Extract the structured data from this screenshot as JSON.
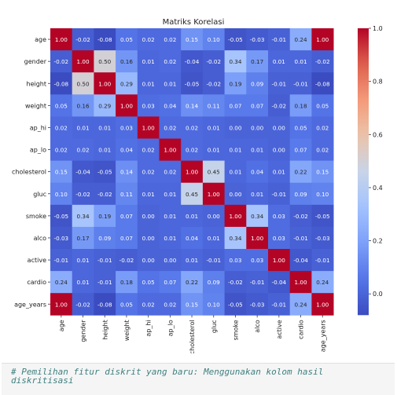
{
  "chart_data": {
    "type": "heatmap",
    "title": "Matriks Korelasi",
    "labels": [
      "age",
      "gender",
      "height",
      "weight",
      "ap_hi",
      "ap_lo",
      "cholesterol",
      "gluc",
      "smoke",
      "alco",
      "active",
      "cardio",
      "age_years"
    ],
    "values": [
      [
        1.0,
        -0.02,
        -0.08,
        0.05,
        0.02,
        0.02,
        0.15,
        0.1,
        -0.05,
        -0.03,
        -0.01,
        0.24,
        1.0
      ],
      [
        -0.02,
        1.0,
        0.5,
        0.16,
        0.01,
        0.02,
        -0.04,
        -0.02,
        0.34,
        0.17,
        0.01,
        0.01,
        -0.02
      ],
      [
        -0.08,
        0.5,
        1.0,
        0.29,
        0.01,
        0.01,
        -0.05,
        -0.02,
        0.19,
        0.09,
        -0.01,
        -0.01,
        -0.08
      ],
      [
        0.05,
        0.16,
        0.29,
        1.0,
        0.03,
        0.04,
        0.14,
        0.11,
        0.07,
        0.07,
        -0.02,
        0.18,
        0.05
      ],
      [
        0.02,
        0.01,
        0.01,
        0.03,
        1.0,
        0.02,
        0.02,
        0.01,
        -0.0,
        0.0,
        -0.0,
        0.05,
        0.02
      ],
      [
        0.02,
        0.02,
        0.01,
        0.04,
        0.02,
        1.0,
        0.02,
        0.01,
        0.01,
        0.01,
        0.0,
        0.07,
        0.02
      ],
      [
        0.15,
        -0.04,
        -0.05,
        0.14,
        0.02,
        0.02,
        1.0,
        0.45,
        0.01,
        0.04,
        0.01,
        0.22,
        0.15
      ],
      [
        0.1,
        -0.02,
        -0.02,
        0.11,
        0.01,
        0.01,
        0.45,
        1.0,
        -0.0,
        0.01,
        -0.01,
        0.09,
        0.1
      ],
      [
        -0.05,
        0.34,
        0.19,
        0.07,
        -0.0,
        0.01,
        0.01,
        -0.0,
        1.0,
        0.34,
        0.03,
        -0.02,
        -0.05
      ],
      [
        -0.03,
        0.17,
        0.09,
        0.07,
        0.0,
        0.01,
        0.04,
        0.01,
        0.34,
        1.0,
        0.03,
        -0.01,
        -0.03
      ],
      [
        -0.01,
        0.01,
        -0.01,
        -0.02,
        -0.0,
        0.0,
        0.01,
        -0.01,
        0.03,
        0.03,
        1.0,
        -0.04,
        -0.01
      ],
      [
        0.24,
        0.01,
        -0.01,
        0.18,
        0.05,
        0.07,
        0.22,
        0.09,
        -0.02,
        -0.01,
        -0.04,
        1.0,
        0.24
      ],
      [
        1.0,
        -0.02,
        -0.08,
        0.05,
        0.02,
        0.02,
        0.15,
        0.1,
        -0.05,
        -0.03,
        -0.01,
        0.24,
        1.0
      ]
    ],
    "colormap": "coolwarm",
    "vmin": -0.08,
    "vmax": 1.0,
    "colorbar_ticks": [
      "0.0",
      "0.2",
      "0.4",
      "0.6",
      "0.8",
      "1.0"
    ]
  },
  "code_cell": {
    "lines": [
      "# Pemilihan fitur diskrit yang baru: Menggunakan kolom hasil",
      "diskritisasi"
    ]
  }
}
